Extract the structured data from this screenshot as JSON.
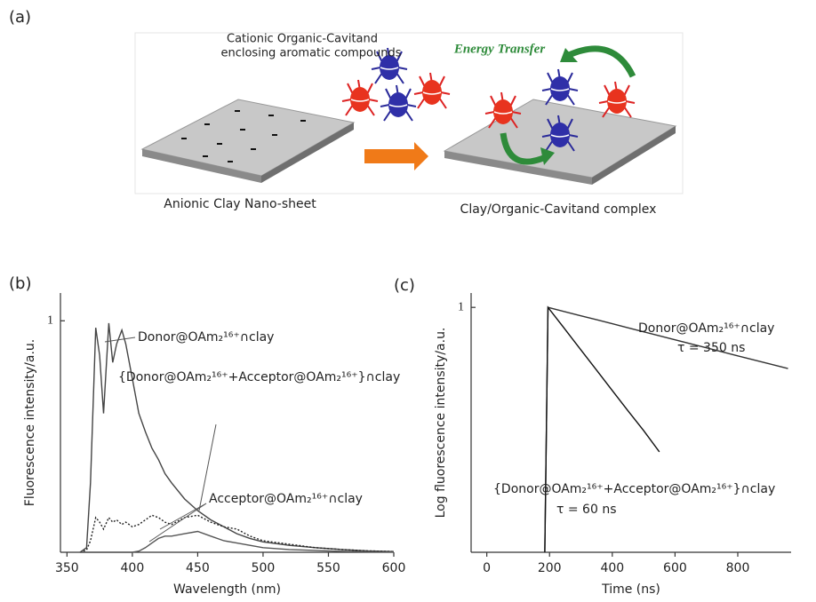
{
  "panel_labels": [
    "(a)",
    "(b)",
    "(c)"
  ],
  "diagram": {
    "cavitand_label": [
      "Cationic Organic-Cavitand",
      "enclosing aromatic compounds"
    ],
    "energy_transfer": "Energy Transfer",
    "clay_label": "Anionic Clay Nano-sheet",
    "complex_label": "Clay/Organic-Cavitand complex"
  },
  "chart_data": [
    {
      "type": "line",
      "x_label": "Wavelength (nm)",
      "y_label": "Fluorescence intensity/a.u.",
      "x": [
        360,
        365,
        368,
        372,
        375,
        378,
        382,
        385,
        388,
        392,
        395,
        400,
        405,
        410,
        415,
        420,
        425,
        430,
        440,
        450,
        460,
        470,
        480,
        490,
        500,
        520,
        540,
        560,
        580,
        600
      ],
      "series": [
        {
          "name": "Donor@OAm₂¹⁶⁺∩clay",
          "color": "#444444",
          "style": "solid",
          "values": [
            0,
            0.02,
            0.3,
            0.97,
            0.85,
            0.6,
            0.99,
            0.82,
            0.9,
            0.96,
            0.9,
            0.75,
            0.6,
            0.52,
            0.45,
            0.4,
            0.34,
            0.3,
            0.23,
            0.18,
            0.14,
            0.11,
            0.08,
            0.06,
            0.045,
            0.03,
            0.02,
            0.012,
            0.006,
            0.003
          ]
        },
        {
          "name": "{Donor@OAm₂¹⁶⁺+Acceptor@OAm₂¹⁶⁺}∩clay",
          "color": "#222222",
          "style": "dotted",
          "values": [
            0,
            0.01,
            0.05,
            0.15,
            0.13,
            0.1,
            0.15,
            0.13,
            0.14,
            0.12,
            0.13,
            0.11,
            0.12,
            0.14,
            0.16,
            0.15,
            0.13,
            0.12,
            0.15,
            0.16,
            0.13,
            0.11,
            0.1,
            0.07,
            0.05,
            0.035,
            0.02,
            0.012,
            0.006,
            0.003
          ]
        },
        {
          "name": "Acceptor@OAm₂¹⁶⁺∩clay",
          "color": "#555555",
          "style": "solid",
          "values": [
            0,
            0,
            0,
            0,
            0,
            0,
            0,
            0,
            0,
            0,
            0,
            0,
            0.005,
            0.02,
            0.04,
            0.06,
            0.07,
            0.07,
            0.08,
            0.09,
            0.07,
            0.05,
            0.04,
            0.03,
            0.02,
            0.012,
            0.008,
            0.004,
            0.002,
            0.001
          ]
        }
      ],
      "xlim": [
        345,
        600
      ],
      "xticks": [
        350,
        400,
        450,
        500,
        550,
        600
      ],
      "ylim": [
        0,
        1.12
      ],
      "yticks": [
        1
      ]
    },
    {
      "type": "line",
      "x_label": "Time (ns)",
      "y_label": "Log fluorescence intensity/a.u.",
      "log_y": true,
      "x": [
        185,
        195,
        250,
        300,
        350,
        400,
        450,
        500,
        550,
        600,
        700,
        800,
        900,
        960
      ],
      "series": [
        {
          "name": "Donor@OAm₂¹⁶⁺∩clay",
          "color": "#333333",
          "style": "solid",
          "values": [
            0.001,
            1,
            0.883,
            0.789,
            0.705,
            0.63,
            0.562,
            0.502,
            0.449,
            0.401,
            0.32,
            0.255,
            0.204,
            0.178
          ]
        },
        {
          "name": "{Donor@OAm₂¹⁶⁺+Acceptor@OAm₂¹⁶⁺}∩clay",
          "color": "#111111",
          "style": "solid",
          "values": [
            0.001,
            1,
            0.534,
            0.301,
            0.17,
            0.096,
            0.054,
            0.031,
            0.017,
            null,
            null,
            null,
            null,
            null
          ]
        }
      ],
      "annotations": [
        "τ = 350 ns",
        "τ = 60 ns"
      ],
      "xlim": [
        -50,
        970
      ],
      "xticks": [
        0,
        200,
        400,
        600,
        800
      ],
      "ylim": [
        0.001,
        1.5
      ],
      "yticks": [
        1
      ]
    }
  ]
}
